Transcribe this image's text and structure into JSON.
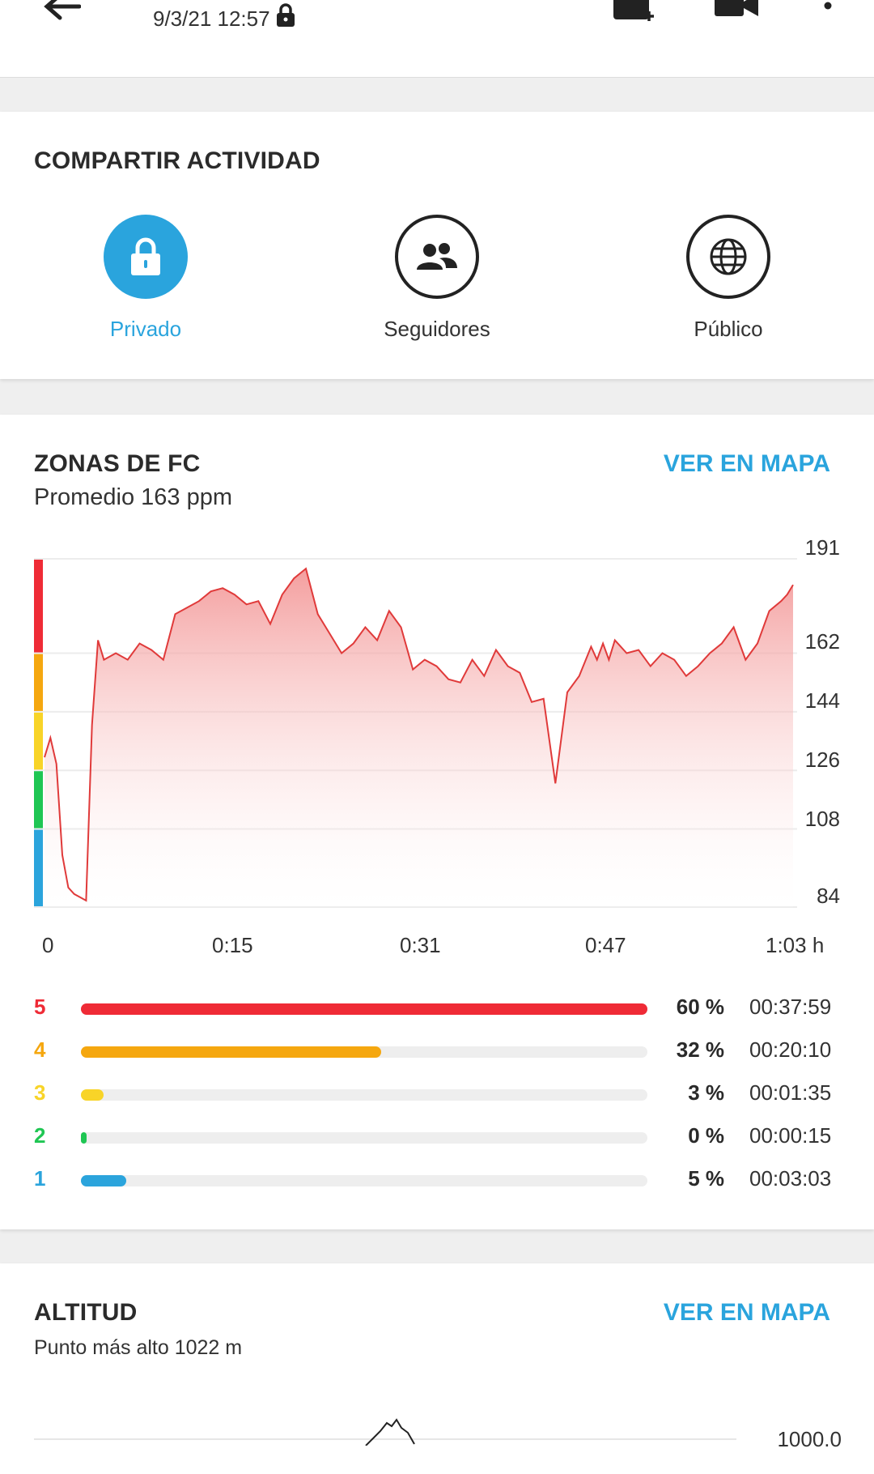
{
  "topbar": {
    "date": "9/3/21 12:57",
    "icons": [
      "back-arrow-icon",
      "lock-icon",
      "add-photo-icon",
      "video-camera-icon",
      "more-vertical-icon"
    ]
  },
  "share": {
    "title": "COMPARTIR ACTIVIDAD",
    "options": [
      {
        "label": "Privado",
        "icon": "lock-icon",
        "selected": true
      },
      {
        "label": "Seguidores",
        "icon": "followers-icon",
        "selected": false
      },
      {
        "label": "Público",
        "icon": "globe-icon",
        "selected": false
      }
    ]
  },
  "hr": {
    "title": "ZONAS DE FC",
    "subtitle": "Promedio 163 ppm",
    "map_link": "VER EN MAPA",
    "zones": [
      {
        "num": "5",
        "pct": "60 %",
        "time": "00:37:59",
        "fill": 1.0,
        "color": "#ef2b36"
      },
      {
        "num": "4",
        "pct": "32 %",
        "time": "00:20:10",
        "fill": 0.53,
        "color": "#f5a70f"
      },
      {
        "num": "3",
        "pct": "3 %",
        "time": "00:01:35",
        "fill": 0.04,
        "color": "#f8d428"
      },
      {
        "num": "2",
        "pct": "0 %",
        "time": "00:00:15",
        "fill": 0.01,
        "color": "#1fc653"
      },
      {
        "num": "1",
        "pct": "5 %",
        "time": "00:03:03",
        "fill": 0.08,
        "color": "#2ba4dc"
      }
    ]
  },
  "chart_data": {
    "type": "area",
    "title": "ZONAS DE FC",
    "xlabel": "",
    "ylabel": "",
    "x_ticks": [
      "0",
      "0:15",
      "0:31",
      "0:47",
      "1:03 h"
    ],
    "y_ticks": [
      "191",
      "162",
      "144",
      "126",
      "108",
      "84"
    ],
    "ylim": [
      84,
      191
    ],
    "xlim": [
      0,
      63
    ],
    "series": [
      {
        "color": "#e03a3a",
        "x": [
          0,
          0.5,
          1,
          1.5,
          2,
          2.5,
          3,
          3.5,
          4,
          4.5,
          5,
          6,
          7,
          8,
          9,
          10,
          11,
          12,
          13,
          14,
          15,
          16,
          17,
          18,
          19,
          20,
          21,
          22,
          23,
          24,
          25,
          26,
          27,
          28,
          29,
          30,
          31,
          32,
          33,
          34,
          35,
          36,
          37,
          38,
          39,
          40,
          41,
          42,
          43,
          44,
          45,
          46,
          46.5,
          47,
          47.5,
          48,
          49,
          50,
          51,
          52,
          53,
          54,
          55,
          56,
          57,
          58,
          59,
          60,
          61,
          62,
          62.5,
          63
        ],
        "y": [
          130,
          136,
          128,
          100,
          90,
          88,
          87,
          86,
          140,
          166,
          160,
          162,
          160,
          165,
          163,
          160,
          174,
          176,
          178,
          181,
          182,
          180,
          177,
          178,
          171,
          180,
          185,
          188,
          174,
          168,
          162,
          165,
          170,
          166,
          175,
          170,
          157,
          160,
          158,
          154,
          153,
          160,
          155,
          163,
          158,
          156,
          147,
          148,
          122,
          150,
          155,
          164,
          160,
          165,
          160,
          166,
          162,
          163,
          158,
          162,
          160,
          155,
          158,
          162,
          165,
          170,
          160,
          165,
          175,
          178,
          180,
          183
        ]
      }
    ]
  },
  "alt": {
    "title": "ALTITUD",
    "subtitle": "Punto más alto 1022 m",
    "map_link": "VER EN MAPA",
    "y_tick": "1000.0"
  }
}
